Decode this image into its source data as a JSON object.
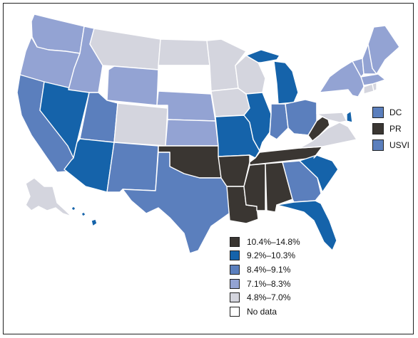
{
  "colors": {
    "c1": "#3a3632",
    "c2": "#1563aa",
    "c3": "#5b7fbd",
    "c4": "#93a3d3",
    "c5": "#d4d5de",
    "c6": "#ffffff"
  },
  "legend": [
    {
      "key": "c1",
      "label": "10.4%–14.8%"
    },
    {
      "key": "c2",
      "label": "9.2%–10.3%"
    },
    {
      "key": "c3",
      "label": "8.4%–9.1%"
    },
    {
      "key": "c4",
      "label": "7.1%–8.3%"
    },
    {
      "key": "c5",
      "label": "4.8%–7.0%"
    },
    {
      "key": "c6",
      "label": "No data"
    }
  ],
  "territories": [
    {
      "label": "DC",
      "key": "c3"
    },
    {
      "label": "PR",
      "key": "c1"
    },
    {
      "label": "USVI",
      "key": "c3"
    }
  ],
  "chart_data": {
    "type": "choropleth",
    "categories": [
      "10.4%–14.8%",
      "9.2%–10.3%",
      "8.4%–9.1%",
      "7.1%–8.3%",
      "4.8%–7.0%",
      "No data"
    ],
    "states": {
      "WA": "c4",
      "OR": "c4",
      "CA": "c3",
      "NV": "c2",
      "ID": "c4",
      "MT": "c5",
      "WY": "c4",
      "UT": "c3",
      "AZ": "c2",
      "CO": "c5",
      "NM": "c3",
      "ND": "c5",
      "SD": "c6",
      "NE": "c4",
      "KS": "c4",
      "OK": "c1",
      "TX": "c3",
      "MN": "c5",
      "IA": "c5",
      "MO": "c2",
      "AR": "c1",
      "LA": "c1",
      "WI": "c5",
      "IL": "c2",
      "MI": "c2",
      "IN": "c3",
      "OH": "c3",
      "KY": "c6",
      "TN": "c1",
      "MS": "c1",
      "AL": "c1",
      "GA": "c3",
      "FL": "c2",
      "SC": "c2",
      "NC": "c6",
      "VA": "c5",
      "WV": "c1",
      "MD": "c5",
      "DE": "c2",
      "PA": "c6",
      "NJ": "c6",
      "NY": "c4",
      "CT": "c5",
      "RI": "c5",
      "MA": "c4",
      "VT": "c4",
      "NH": "c4",
      "ME": "c4",
      "AK": "c5",
      "HI": "c2"
    },
    "territories": {
      "DC": "c3",
      "PR": "c1",
      "USVI": "c3"
    }
  }
}
